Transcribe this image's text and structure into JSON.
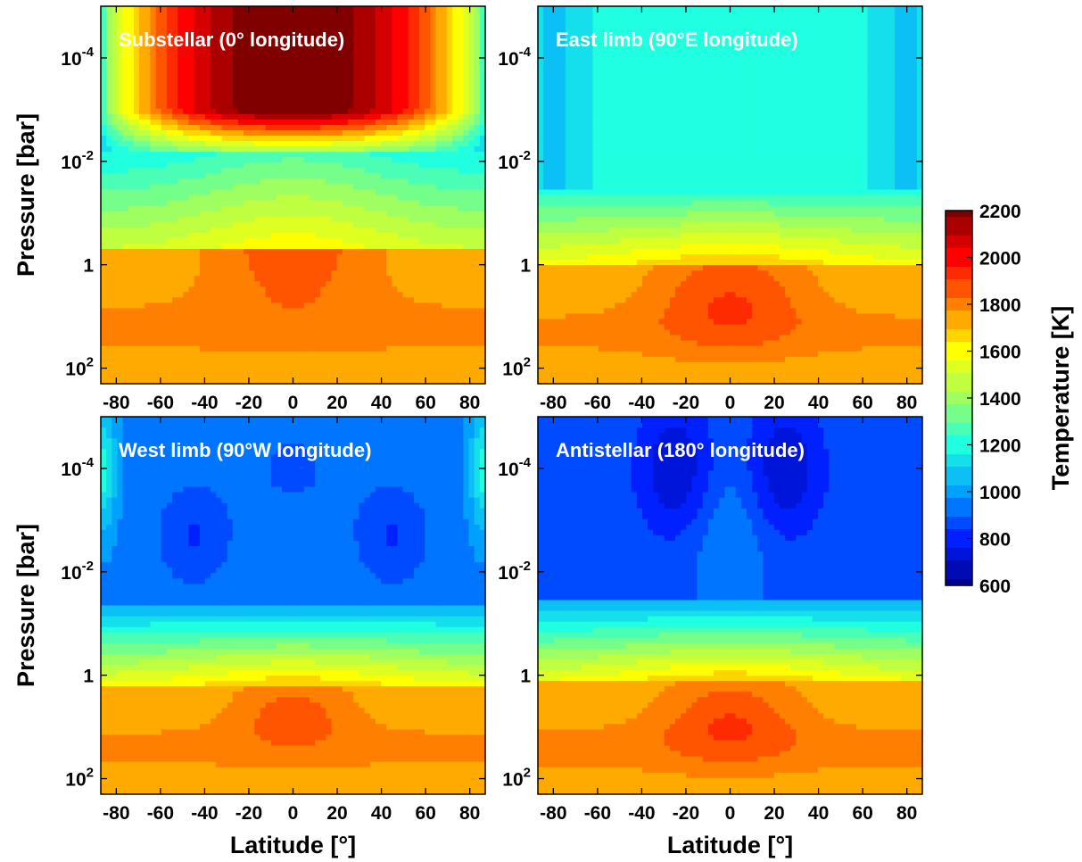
{
  "chart_data": [
    {
      "type": "heatmap",
      "title": "Substellar (0° longitude)",
      "xlabel": "",
      "ylabel": "Pressure [bar]",
      "xlim": [
        -87,
        87
      ],
      "ylim": [
        200,
        1e-05
      ],
      "yscale": "log",
      "x_ticks": [
        "-80",
        "-60",
        "-40",
        "-20",
        "0",
        "20",
        "40",
        "60",
        "80"
      ],
      "y_ticks": [
        {
          "base": "10",
          "exp": "-4"
        },
        {
          "base": "10",
          "exp": "-2"
        },
        {
          "base": "1",
          "exp": ""
        },
        {
          "base": "10",
          "exp": "2"
        }
      ],
      "field": {
        "upper_core": 2200,
        "deep": 1780,
        "deep_core": 1900,
        "mid": 1250,
        "limb_mid": 1100
      }
    },
    {
      "type": "heatmap",
      "title": "East limb (90°E longitude)",
      "xlabel": "",
      "ylabel": "",
      "xlim": [
        -87,
        87
      ],
      "ylim": [
        200,
        1e-05
      ],
      "yscale": "log",
      "x_ticks": [
        "-80",
        "-60",
        "-40",
        "-20",
        "0",
        "20",
        "40",
        "60",
        "80"
      ],
      "y_ticks": [
        {
          "base": "10",
          "exp": "-4"
        },
        {
          "base": "10",
          "exp": "-2"
        },
        {
          "base": "1",
          "exp": ""
        },
        {
          "base": "10",
          "exp": "2"
        }
      ],
      "field": {
        "upper": 1200,
        "upper_limb": 1080,
        "deep": 1800,
        "deep_core": 1900
      }
    },
    {
      "type": "heatmap",
      "title": "West limb (90°W longitude)",
      "xlabel": "Latitude [°]",
      "ylabel": "Pressure [bar]",
      "xlim": [
        -87,
        87
      ],
      "ylim": [
        200,
        1e-05
      ],
      "yscale": "log",
      "x_ticks": [
        "-80",
        "-60",
        "-40",
        "-20",
        "0",
        "20",
        "40",
        "60",
        "80"
      ],
      "y_ticks": [
        {
          "base": "10",
          "exp": "-4"
        },
        {
          "base": "10",
          "exp": "-2"
        },
        {
          "base": "1",
          "exp": ""
        },
        {
          "base": "10",
          "exp": "2"
        }
      ],
      "field": {
        "upper": 920,
        "upper_core": 820,
        "deep": 1780,
        "deep_core": 1850
      }
    },
    {
      "type": "heatmap",
      "title": "Antistellar (180° longitude)",
      "xlabel": "Latitude [°]",
      "ylabel": "",
      "xlim": [
        -87,
        87
      ],
      "ylim": [
        200,
        1e-05
      ],
      "yscale": "log",
      "x_ticks": [
        "-80",
        "-60",
        "-40",
        "-20",
        "0",
        "20",
        "40",
        "60",
        "80"
      ],
      "y_ticks": [
        {
          "base": "10",
          "exp": "-4"
        },
        {
          "base": "10",
          "exp": "-2"
        },
        {
          "base": "1",
          "exp": ""
        },
        {
          "base": "10",
          "exp": "2"
        }
      ],
      "field": {
        "upper": 900,
        "upper_core": 720,
        "deep": 1800,
        "deep_core": 1880
      }
    }
  ],
  "colorbar": {
    "label": "Temperature [K]",
    "range": [
      600,
      2200
    ],
    "ticks": [
      "2200",
      "2000",
      "1800",
      "1600",
      "1400",
      "1200",
      "1000",
      "800",
      "600"
    ],
    "colormap": [
      "#00008f",
      "#0020ff",
      "#00a0ff",
      "#20ffdf",
      "#9fff60",
      "#ffff00",
      "#ff8000",
      "#ff0000",
      "#800000"
    ]
  }
}
